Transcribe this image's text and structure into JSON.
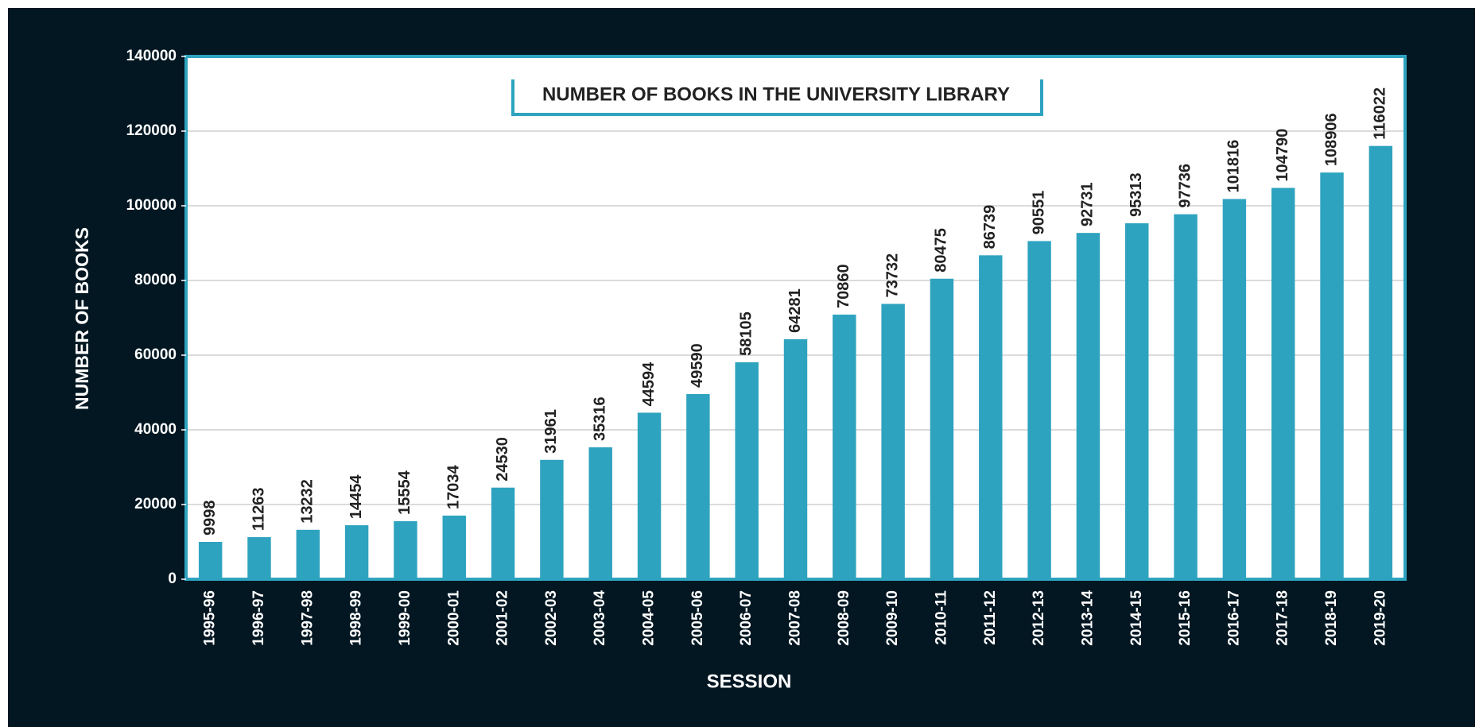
{
  "chart_data": {
    "type": "bar",
    "title": "NUMBER OF BOOKS IN THE UNIVERSITY LIBRARY",
    "x_label": "SESSION",
    "y_label": "NUMBER OF BOOKS",
    "categories": [
      "1995-96",
      "1996-97",
      "1997-98",
      "1998-99",
      "1999-00",
      "2000-01",
      "2001-02",
      "2002-03",
      "2003-04",
      "2004-05",
      "2005-06",
      "2006-07",
      "2007-08",
      "2008-09",
      "2009-10",
      "2010-11",
      "2011-12",
      "2012-13",
      "2013-14",
      "2014-15",
      "2015-16",
      "2016-17",
      "2017-18",
      "2018-19",
      "2019-20"
    ],
    "values": [
      9998,
      11263,
      13232,
      14454,
      15554,
      17034,
      24530,
      31961,
      35316,
      44594,
      49590,
      58105,
      64281,
      70860,
      73732,
      80475,
      86739,
      90551,
      92731,
      95313,
      97736,
      101816,
      104790,
      108906,
      116022
    ],
    "color": "#2ea3bf",
    "ylim": [
      0,
      140000
    ],
    "yticks": [
      0,
      20000,
      40000,
      60000,
      80000,
      100000,
      120000,
      140000
    ],
    "grid": true
  }
}
